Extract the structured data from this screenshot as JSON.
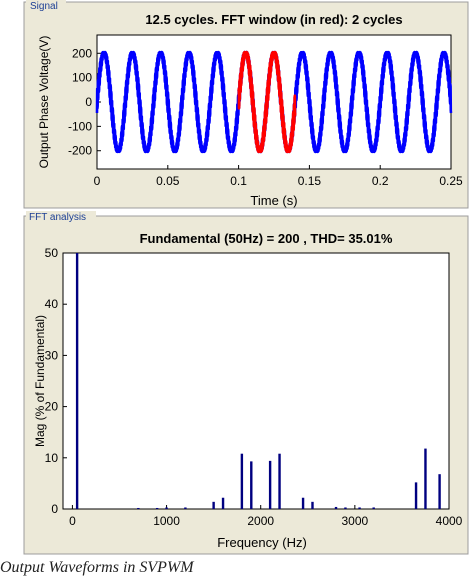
{
  "panels": {
    "signal_label": "Signal",
    "fft_label": "FFT analysis"
  },
  "caption": "Output Waveforms in SVPWM",
  "colors": {
    "signal": "#0000ff",
    "fft_window": "#ff0000",
    "fft_bars": "#000080",
    "frame_bg": "#ece9d8",
    "frame_border": "#9c9c9c"
  },
  "chart_data": [
    {
      "type": "line",
      "title": "12.5 cycles. FFT window (in red): 2 cycles",
      "xlabel": "Time (s)",
      "ylabel": "Output Phase Voltage(V)",
      "xlim": [
        0,
        0.25
      ],
      "ylim": [
        -275,
        275
      ],
      "xticks": [
        "0",
        "0.05",
        "0.1",
        "0.15",
        "0.2",
        "0.25"
      ],
      "yticks": [
        "200",
        "100",
        "0",
        "-100",
        "-200"
      ],
      "grid": false,
      "series": [
        {
          "waveform": "svpwm",
          "amplitude_v": 200,
          "frequency_hz": 50,
          "x_range": [
            0,
            0.25
          ],
          "color": "#0000ff"
        },
        {
          "waveform": "svpwm",
          "amplitude_v": 200,
          "frequency_hz": 50,
          "x_range": [
            0.1,
            0.14
          ],
          "color": "#ff0000"
        }
      ]
    },
    {
      "type": "bar",
      "title": "Fundamental (50Hz) = 200 , THD= 35.01%",
      "xlabel": "Frequency (Hz)",
      "ylabel": "Mag (% of Fundamental)",
      "xlim": [
        -100,
        4000
      ],
      "ylim": [
        0,
        50
      ],
      "xticks": [
        "0",
        "1000",
        "2000",
        "3000",
        "4000"
      ],
      "yticks": [
        "50",
        "40",
        "30",
        "20",
        "10",
        "0"
      ],
      "grid": false,
      "frequencies": [
        50,
        700,
        900,
        1000,
        1200,
        1500,
        1600,
        1800,
        1900,
        2100,
        2200,
        2450,
        2550,
        2800,
        2900,
        3050,
        3200,
        3650,
        3750,
        3900
      ],
      "values": [
        50,
        0.2,
        0.2,
        0.3,
        0.3,
        1.4,
        2.2,
        10.8,
        9.3,
        9.4,
        10.8,
        2.2,
        1.4,
        0.4,
        0.3,
        0.3,
        0.3,
        5.2,
        11.8,
        6.8
      ]
    }
  ]
}
